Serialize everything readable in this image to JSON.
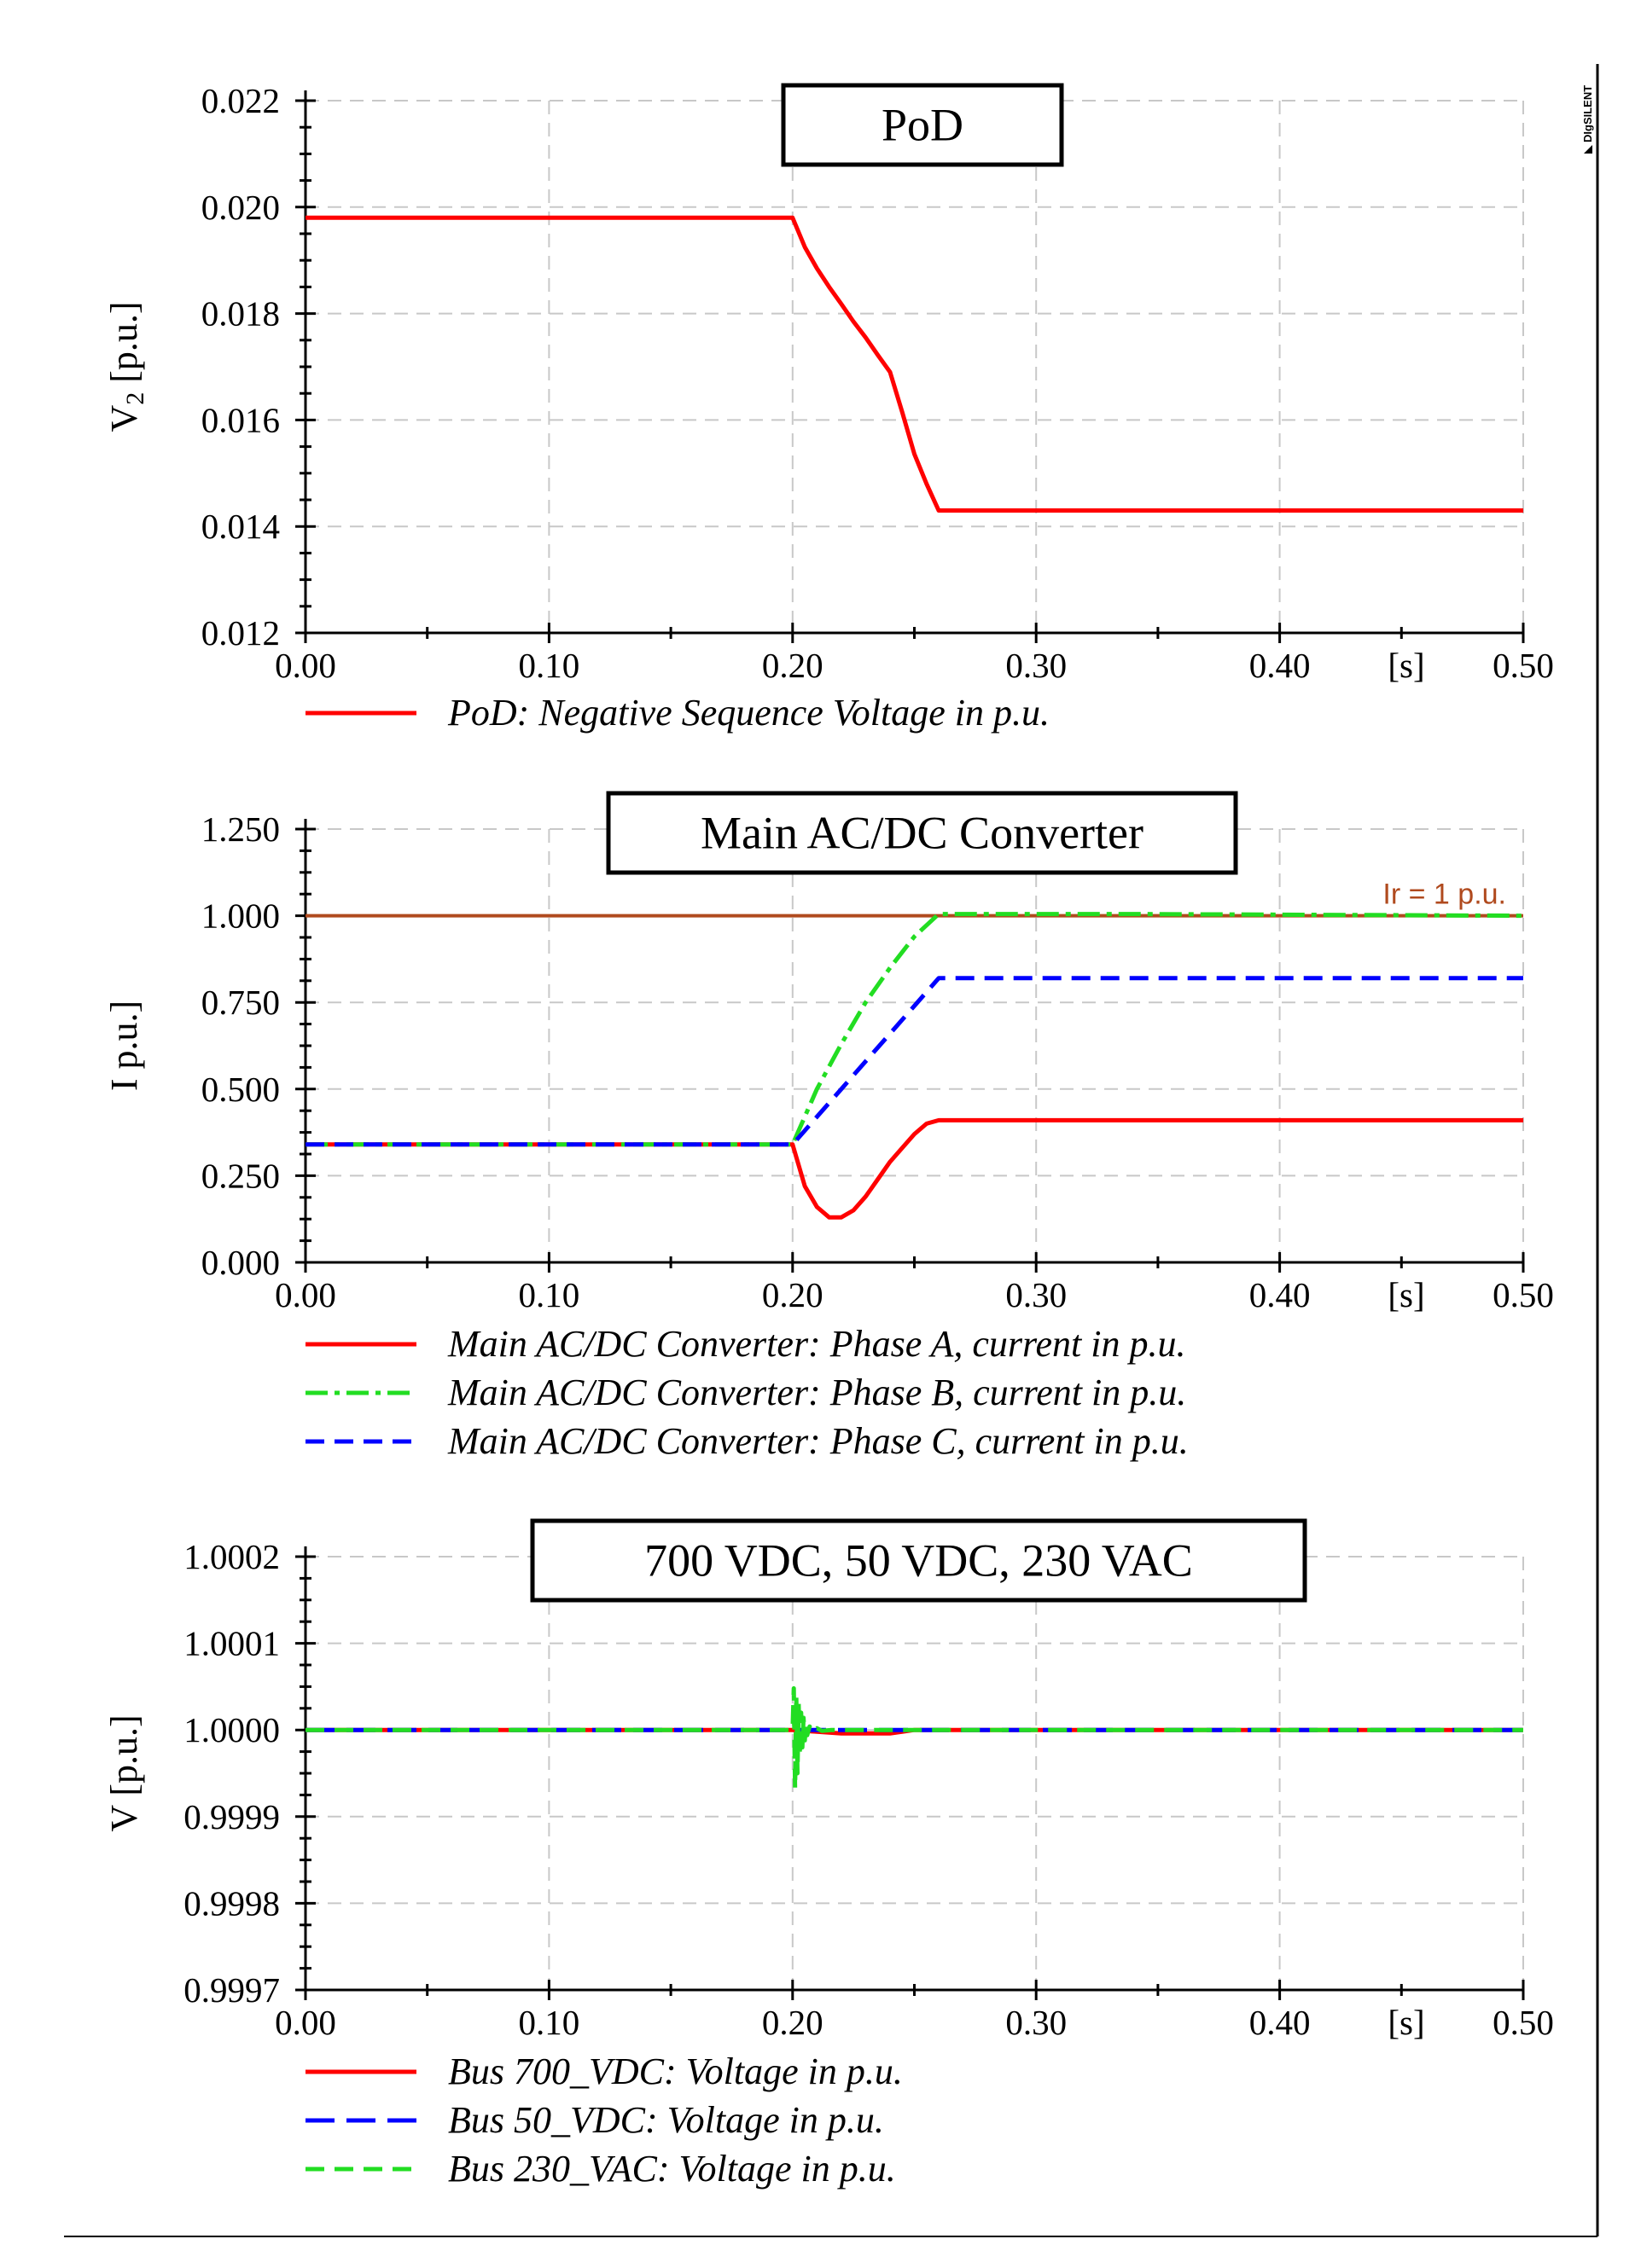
{
  "brand": {
    "logo_text": "DIgSILENT"
  },
  "chart_data": [
    {
      "type": "line",
      "title": "PoD",
      "xlabel": "[s]",
      "ylabel": "V",
      "ylabel_sub": "2",
      "ylabel_unit": " [p.u.]",
      "xlim": [
        0.0,
        0.5
      ],
      "ylim": [
        0.012,
        0.022
      ],
      "grid": true,
      "xticks": [
        0.0,
        0.1,
        0.2,
        0.3,
        0.4,
        0.5
      ],
      "xtick_labels": [
        "0.00",
        "0.10",
        "0.20",
        "0.30",
        "0.40",
        "0.50"
      ],
      "yticks": [
        0.012,
        0.014,
        0.016,
        0.018,
        0.02,
        0.022
      ],
      "ytick_labels": [
        "0.012",
        "0.014",
        "0.016",
        "0.018",
        "0.020",
        "0.022"
      ],
      "series": [
        {
          "name": "PoD: Negative Sequence Voltage in p.u.",
          "color": "#ff0000",
          "dash": "solid",
          "x": [
            0.0,
            0.2,
            0.205,
            0.21,
            0.215,
            0.22,
            0.225,
            0.23,
            0.235,
            0.24,
            0.245,
            0.25,
            0.255,
            0.26,
            0.5
          ],
          "y": [
            0.0198,
            0.0198,
            0.01925,
            0.01885,
            0.0185,
            0.01818,
            0.01785,
            0.01755,
            0.01722,
            0.0169,
            0.01615,
            0.01536,
            0.0148,
            0.0143,
            0.0143
          ]
        }
      ]
    },
    {
      "type": "line",
      "title": "Main AC/DC Converter",
      "xlabel": "[s]",
      "ylabel": "I p.u.]",
      "ylabel_sub": "",
      "ylabel_unit": "",
      "xlim": [
        0.0,
        0.5
      ],
      "ylim": [
        0.0,
        1.25
      ],
      "grid": true,
      "xticks": [
        0.0,
        0.1,
        0.2,
        0.3,
        0.4,
        0.5
      ],
      "xtick_labels": [
        "0.00",
        "0.10",
        "0.20",
        "0.30",
        "0.40",
        "0.50"
      ],
      "yticks": [
        0.0,
        0.25,
        0.5,
        0.75,
        1.0,
        1.25
      ],
      "ytick_labels": [
        "0.000",
        "0.250",
        "0.500",
        "0.750",
        "1.000",
        "1.250"
      ],
      "reference_line": {
        "label": "Ir = 1 p.u.",
        "value": 1.0,
        "color": "#b04a1e"
      },
      "series": [
        {
          "name": "Main AC/DC Converter: Phase A, current in p.u.",
          "color": "#ff0000",
          "dash": "solid",
          "x": [
            0.0,
            0.2,
            0.205,
            0.21,
            0.215,
            0.22,
            0.225,
            0.23,
            0.235,
            0.24,
            0.245,
            0.25,
            0.255,
            0.26,
            0.5
          ],
          "y": [
            0.34,
            0.34,
            0.22,
            0.16,
            0.13,
            0.13,
            0.15,
            0.19,
            0.24,
            0.29,
            0.33,
            0.37,
            0.4,
            0.41,
            0.41
          ]
        },
        {
          "name": "Main AC/DC Converter: Phase B, current in p.u.",
          "color": "#22dd22",
          "dash": "dashdot",
          "x": [
            0.0,
            0.2,
            0.21,
            0.22,
            0.23,
            0.24,
            0.25,
            0.26,
            0.34,
            0.5
          ],
          "y": [
            0.34,
            0.34,
            0.5,
            0.63,
            0.75,
            0.85,
            0.94,
            1.005,
            1.005,
            1.0
          ]
        },
        {
          "name": "Main AC/DC Converter: Phase C, current in p.u.",
          "color": "#0000ff",
          "dash": "dashed",
          "x": [
            0.0,
            0.2,
            0.21,
            0.22,
            0.23,
            0.24,
            0.25,
            0.26,
            0.5
          ],
          "y": [
            0.34,
            0.34,
            0.42,
            0.5,
            0.58,
            0.66,
            0.74,
            0.82,
            0.82
          ]
        }
      ]
    },
    {
      "type": "line",
      "title": "700 VDC, 50 VDC, 230 VAC",
      "xlabel": "[s]",
      "ylabel": "V [p.u.]",
      "ylabel_sub": "",
      "ylabel_unit": "",
      "xlim": [
        0.0,
        0.5
      ],
      "ylim": [
        0.9997,
        1.0002
      ],
      "grid": true,
      "xticks": [
        0.0,
        0.1,
        0.2,
        0.3,
        0.4,
        0.5
      ],
      "xtick_labels": [
        "0.00",
        "0.10",
        "0.20",
        "0.30",
        "0.40",
        "0.50"
      ],
      "yticks": [
        0.9997,
        0.9998,
        0.9999,
        1.0,
        1.0001,
        1.0002
      ],
      "ytick_labels": [
        "0.9997",
        "0.9998",
        "0.9999",
        "1.0000",
        "1.0001",
        "1.0002"
      ],
      "series": [
        {
          "name": "Bus 700_VDC: Voltage in p.u.",
          "color": "#ff0000",
          "dash": "solid",
          "x": [
            0.0,
            0.2,
            0.21,
            0.22,
            0.24,
            0.25,
            0.5
          ],
          "y": [
            1.0,
            1.0,
            0.999998,
            0.999996,
            0.999996,
            1.0,
            1.0
          ]
        },
        {
          "name": "Bus 50_VDC: Voltage in p.u.",
          "color": "#0000ff",
          "dash": "longdash",
          "x": [
            0.0,
            0.5
          ],
          "y": [
            1.0,
            1.0
          ]
        },
        {
          "name": "Bus 230_VAC: Voltage in p.u.",
          "color": "#22dd22",
          "dash": "dashed",
          "x": [
            0.0,
            0.2,
            0.2005,
            0.201,
            0.2015,
            0.202,
            0.2025,
            0.203,
            0.2035,
            0.204,
            0.2045,
            0.205,
            0.2055,
            0.206,
            0.207,
            0.208,
            0.21,
            0.212,
            0.216,
            0.5
          ],
          "y": [
            1.0,
            1.0,
            1.000048,
            0.999932,
            1.00004,
            0.99995,
            1.00003,
            0.99997,
            1.00002,
            0.99998,
            1.000014,
            0.999988,
            1.000008,
            0.999994,
            1.000004,
            0.999998,
            1.000002,
            0.999999,
            1.0,
            1.0
          ]
        }
      ]
    }
  ]
}
